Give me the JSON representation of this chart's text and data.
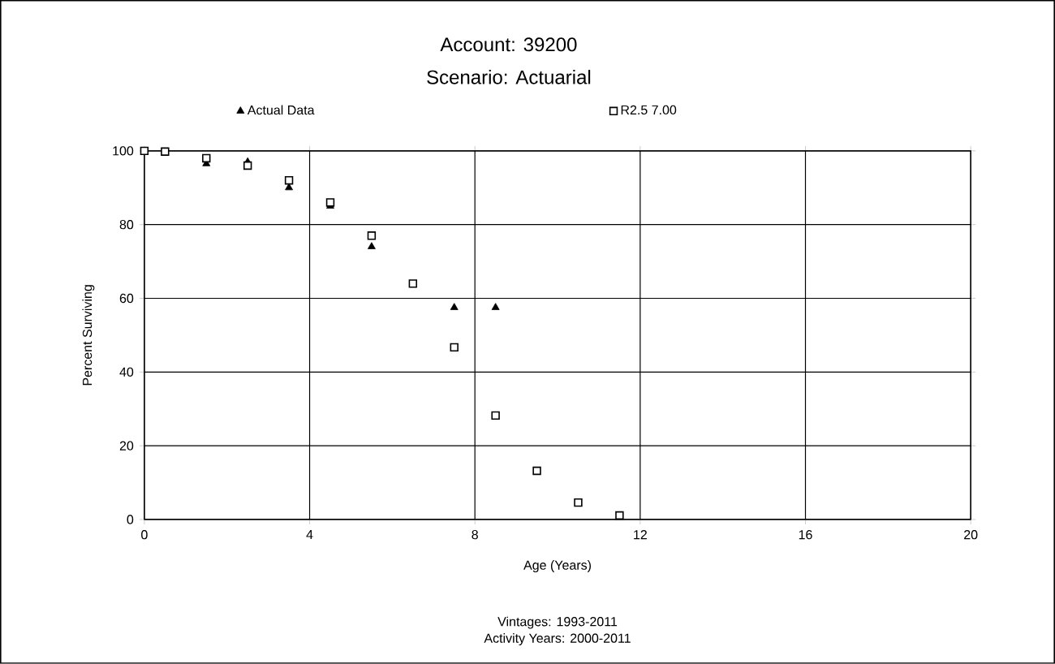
{
  "chart_data": {
    "type": "scatter",
    "title": "Account: 39200",
    "subtitle": "Scenario: Actuarial",
    "xlabel": "Age (Years)",
    "ylabel": "Percent Surviving",
    "annotations": [
      "Vintages: 1993-2011",
      "Activity Years: 2000-2011"
    ],
    "series": [
      {
        "name": "Actual Data",
        "color": "#000000",
        "marker": "triangle",
        "x": [
          1.5,
          2.5,
          3.5,
          4.5,
          5.5,
          6.5,
          7.5,
          8.5
        ],
        "values": [
          96.5,
          97,
          90,
          85,
          74,
          null,
          57.5,
          57.5
        ]
      },
      {
        "name": "R2.5 7.00",
        "color": "#000000",
        "marker": "square",
        "x": [
          0,
          0.5,
          1.5,
          2.5,
          3.5,
          4.5,
          5.5,
          6.5,
          7.5,
          8.5,
          9.5,
          10.5,
          11.5
        ],
        "values": [
          100,
          99.8,
          98,
          96,
          92,
          86,
          77,
          64,
          46.7,
          28.2,
          13.2,
          4.6,
          1.1
        ]
      }
    ],
    "xlim": [
      0,
      20
    ],
    "ylim": [
      0,
      100
    ],
    "xticks": [
      0,
      4,
      8,
      12,
      16,
      20
    ],
    "yticks": [
      0,
      20,
      40,
      60,
      80,
      100
    ],
    "grid": true,
    "legend": "top"
  }
}
